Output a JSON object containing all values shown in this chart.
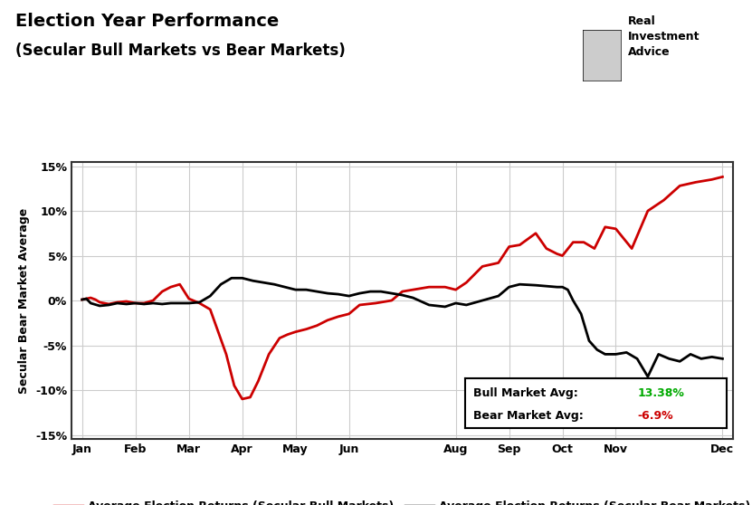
{
  "title_line1": "Election Year Performance",
  "title_line2": "(Secular Bull Markets vs Bear Markets)",
  "ylabel": "Secular Bear Market Average",
  "background_color": "#ffffff",
  "grid_color": "#cccccc",
  "ylim": [
    -0.155,
    0.155
  ],
  "ytick_vals": [
    -0.15,
    -0.1,
    -0.05,
    0.0,
    0.05,
    0.1,
    0.15
  ],
  "ytick_labels": [
    "-15%",
    "-10%",
    "-5%",
    "0%",
    "5%",
    "10%",
    "15%"
  ],
  "xtick_positions": [
    0,
    1,
    2,
    3,
    4,
    5,
    7,
    8,
    9,
    10,
    12
  ],
  "xtick_labels": [
    "Jan",
    "Feb",
    "Mar",
    "Apr",
    "May",
    "Jun",
    "Aug",
    "Sep",
    "Oct",
    "Nov",
    "Dec"
  ],
  "bull_label": "Average Election Returns (Secular Bull Markets)",
  "bear_label": "Average Election Returns (Secular Bear Markets)",
  "bull_color": "#cc0000",
  "bear_color": "#000000",
  "bull_avg_text": "13.38%",
  "bear_avg_text": "-6.9%",
  "bull_avg_color": "#00aa00",
  "bear_avg_color": "#cc0000",
  "bull_x": [
    0.0,
    0.08,
    0.16,
    0.25,
    0.33,
    0.5,
    0.66,
    0.83,
    1.0,
    1.16,
    1.33,
    1.5,
    1.66,
    1.83,
    2.0,
    2.2,
    2.4,
    2.55,
    2.7,
    2.85,
    3.0,
    3.15,
    3.3,
    3.5,
    3.7,
    3.85,
    4.0,
    4.2,
    4.4,
    4.6,
    4.8,
    5.0,
    5.2,
    5.5,
    5.8,
    6.0,
    6.2,
    6.5,
    6.8,
    7.0,
    7.2,
    7.5,
    7.8,
    8.0,
    8.2,
    8.5,
    8.7,
    8.9,
    9.0,
    9.2,
    9.4,
    9.6,
    9.8,
    10.0,
    10.3,
    10.6,
    10.9,
    11.2,
    11.5,
    11.8,
    12.0
  ],
  "bull_y": [
    0.001,
    0.002,
    0.003,
    0.001,
    -0.002,
    -0.004,
    -0.002,
    -0.001,
    -0.003,
    -0.003,
    0.0,
    0.01,
    0.015,
    0.018,
    0.002,
    -0.003,
    -0.01,
    -0.035,
    -0.06,
    -0.095,
    -0.11,
    -0.108,
    -0.09,
    -0.06,
    -0.042,
    -0.038,
    -0.035,
    -0.032,
    -0.028,
    -0.022,
    -0.018,
    -0.015,
    -0.005,
    -0.003,
    0.0,
    0.01,
    0.012,
    0.015,
    0.015,
    0.012,
    0.02,
    0.038,
    0.042,
    0.06,
    0.062,
    0.075,
    0.058,
    0.052,
    0.05,
    0.065,
    0.065,
    0.058,
    0.082,
    0.08,
    0.058,
    0.1,
    0.112,
    0.128,
    0.132,
    0.135,
    0.138
  ],
  "bear_x": [
    0.0,
    0.08,
    0.16,
    0.33,
    0.5,
    0.66,
    0.83,
    1.0,
    1.16,
    1.33,
    1.5,
    1.66,
    1.83,
    2.0,
    2.2,
    2.4,
    2.6,
    2.8,
    3.0,
    3.2,
    3.4,
    3.6,
    3.8,
    4.0,
    4.2,
    4.4,
    4.6,
    4.8,
    5.0,
    5.2,
    5.4,
    5.6,
    5.8,
    6.0,
    6.2,
    6.5,
    6.8,
    7.0,
    7.2,
    7.5,
    7.8,
    8.0,
    8.2,
    8.5,
    8.7,
    8.9,
    9.0,
    9.1,
    9.2,
    9.35,
    9.5,
    9.65,
    9.8,
    10.0,
    10.2,
    10.4,
    10.6,
    10.8,
    11.0,
    11.2,
    11.4,
    11.6,
    11.8,
    12.0
  ],
  "bear_y": [
    0.001,
    0.002,
    -0.003,
    -0.006,
    -0.005,
    -0.003,
    -0.004,
    -0.003,
    -0.004,
    -0.003,
    -0.004,
    -0.003,
    -0.003,
    -0.003,
    -0.002,
    0.005,
    0.018,
    0.025,
    0.025,
    0.022,
    0.02,
    0.018,
    0.015,
    0.012,
    0.012,
    0.01,
    0.008,
    0.007,
    0.005,
    0.008,
    0.01,
    0.01,
    0.008,
    0.006,
    0.003,
    -0.005,
    -0.007,
    -0.003,
    -0.005,
    0.0,
    0.005,
    0.015,
    0.018,
    0.017,
    0.016,
    0.015,
    0.015,
    0.012,
    0.0,
    -0.015,
    -0.045,
    -0.055,
    -0.06,
    -0.06,
    -0.058,
    -0.065,
    -0.085,
    -0.06,
    -0.065,
    -0.068,
    -0.06,
    -0.065,
    -0.063,
    -0.065
  ],
  "logo_text": "Real\nInvestment\nAdvice"
}
